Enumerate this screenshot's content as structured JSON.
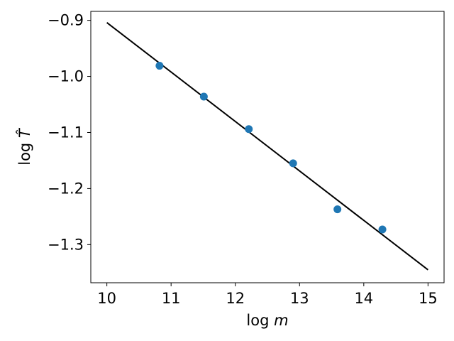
{
  "chart_data": {
    "type": "scatter",
    "xlabel": {
      "prefix": "log ",
      "symbol": "m"
    },
    "ylabel": {
      "prefix": "log ",
      "symbol": "T̂"
    },
    "xlim": [
      9.75,
      15.25
    ],
    "ylim": [
      -1.368,
      -0.884
    ],
    "xticks": [
      10,
      11,
      12,
      13,
      14,
      15
    ],
    "xtick_labels": [
      "10",
      "11",
      "12",
      "13",
      "14",
      "15"
    ],
    "yticks": [
      -0.9,
      -1.0,
      -1.1,
      -1.2,
      -1.3
    ],
    "ytick_labels": [
      "−0.9",
      "−1.0",
      "−1.1",
      "−1.2",
      "−1.3"
    ],
    "grid": false,
    "series": [
      {
        "kind": "scatter",
        "color": "#1f77b4",
        "points": [
          {
            "x": 10.82,
            "y": -0.981
          },
          {
            "x": 11.51,
            "y": -1.036
          },
          {
            "x": 12.21,
            "y": -1.094
          },
          {
            "x": 12.9,
            "y": -1.155
          },
          {
            "x": 13.59,
            "y": -1.237
          },
          {
            "x": 14.29,
            "y": -1.273
          }
        ]
      },
      {
        "kind": "line",
        "color": "#000000",
        "points": [
          {
            "x": 10.0,
            "y": -0.904
          },
          {
            "x": 15.0,
            "y": -1.345
          }
        ]
      }
    ]
  }
}
